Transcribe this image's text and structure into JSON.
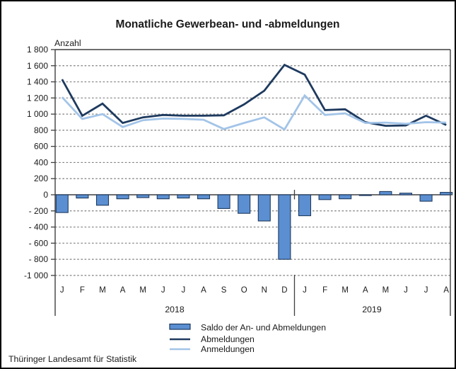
{
  "title": "Monatliche Gewerbean- und -abmeldungen",
  "y_axis_label": "Anzahl",
  "footer": "Thüringer Landesamt für Statistik",
  "colors": {
    "saldo_fill": "#5b8fd2",
    "saldo_border": "#1e3a5f",
    "abmeldungen_line": "#1e3a5f",
    "anmeldungen_line": "#a3c4e8",
    "gridline": "#7f7f7f",
    "axis": "#3f3f3f",
    "text": "#1a1a1a"
  },
  "legend": {
    "items": [
      {
        "label": "Saldo der An- und Abmeldungen",
        "swatch": "bar-swatch"
      },
      {
        "label": "Abmeldungen",
        "swatch": "dark-line-swatch"
      },
      {
        "label": "Anmeldungen",
        "swatch": "light-line-swatch"
      }
    ]
  },
  "chart_data": {
    "type": "combo bar + line",
    "title": "Monatliche Gewerbean- und -abmeldungen",
    "ylabel": "Anzahl",
    "ylim": [
      -1000,
      1800
    ],
    "ytick_step": 200,
    "grid": "dashed horizontal gridlines; solid top border and solid zero line",
    "legend_position": "bottom center",
    "categories": [
      "J",
      "F",
      "M",
      "A",
      "M",
      "J",
      "J",
      "A",
      "S",
      "O",
      "N",
      "D",
      "J",
      "F",
      "M",
      "A",
      "M",
      "J",
      "J",
      "A"
    ],
    "year_groups": [
      {
        "label": "2018",
        "months": 12
      },
      {
        "label": "2019",
        "months": 8
      }
    ],
    "series": [
      {
        "name": "Saldo der An- und Abmeldungen",
        "type": "bar",
        "values": [
          -220,
          -40,
          -130,
          -50,
          -35,
          -50,
          -40,
          -50,
          -170,
          -230,
          -325,
          -800,
          -260,
          -60,
          -50,
          -10,
          40,
          20,
          -80,
          30
        ]
      },
      {
        "name": "Abmeldungen",
        "type": "line",
        "values": [
          1430,
          980,
          1130,
          890,
          960,
          990,
          980,
          980,
          985,
          1120,
          1290,
          1610,
          1490,
          1050,
          1060,
          900,
          855,
          860,
          980,
          865
        ]
      },
      {
        "name": "Anmeldungen",
        "type": "line",
        "values": [
          1210,
          940,
          1000,
          840,
          925,
          945,
          940,
          930,
          815,
          890,
          960,
          810,
          1230,
          990,
          1010,
          890,
          895,
          880,
          900,
          895
        ]
      }
    ]
  }
}
